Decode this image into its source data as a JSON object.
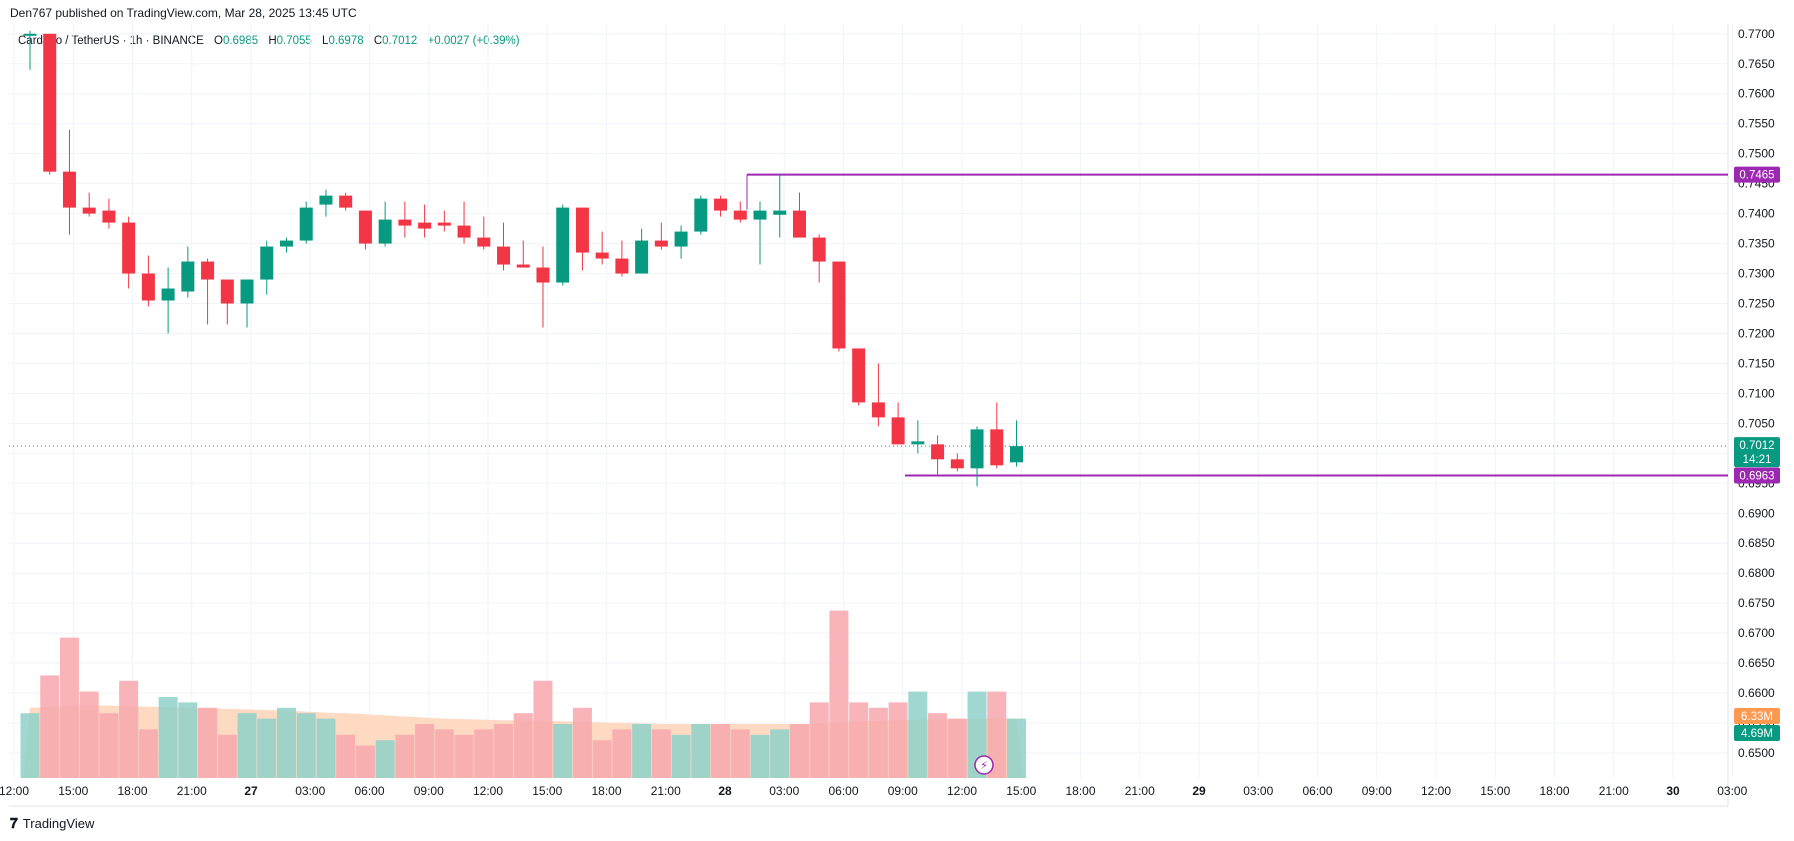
{
  "header": {
    "publisher_line": "Den767 published on TradingView.com, Mar 28, 2025 13:45 UTC"
  },
  "legend": {
    "symbol": "Cardano / TetherUS · 1h · BINANCE",
    "open_label": "O",
    "open": "0.6985",
    "high_label": "H",
    "high": "0.7055",
    "low_label": "L",
    "low": "0.6978",
    "close_label": "C",
    "close": "0.7012",
    "change": "+0.0027 (+0.39%)"
  },
  "footer": {
    "brand": "TradingView"
  },
  "colors": {
    "up": "#089981",
    "down": "#f23645",
    "vol_up": "#8fd1c9",
    "vol_down": "#f7a7ad",
    "vol_ma_fill": "#ffd3b8",
    "level_line": "#9c27b0",
    "grid": "#f0f3fa",
    "axis_text": "#131722"
  },
  "chart_data": {
    "type": "candlestick",
    "symbol": "ADAUSDT",
    "interval": "1h",
    "y_axis": {
      "range": [
        0.6485,
        0.7708
      ],
      "tick_labels": [
        "0.7700",
        "0.7650",
        "0.7600",
        "0.7550",
        "0.7500",
        "0.7450",
        "0.7400",
        "0.7350",
        "0.7300",
        "0.7250",
        "0.7200",
        "0.7150",
        "0.7100",
        "0.7050",
        "0.7000",
        "0.6950",
        "0.6900",
        "0.6850",
        "0.6800",
        "0.6750",
        "0.6700",
        "0.6650",
        "0.6600",
        "0.6550",
        "0.6500"
      ]
    },
    "x_axis": {
      "tick_labels": [
        "12:00",
        "15:00",
        "18:00",
        "21:00",
        "27",
        "03:00",
        "06:00",
        "09:00",
        "12:00",
        "15:00",
        "18:00",
        "21:00",
        "28",
        "03:00",
        "06:00",
        "09:00",
        "12:00",
        "15:00",
        "18:00",
        "21:00",
        "29",
        "03:00",
        "06:00",
        "09:00",
        "12:00",
        "15:00",
        "18:00",
        "21:00",
        "30",
        "03:00"
      ],
      "bold_labels": [
        "27",
        "28",
        "29",
        "30"
      ]
    },
    "candles": [
      {
        "o": 0.77,
        "h": 0.7705,
        "l": 0.764,
        "c": 0.77
      },
      {
        "o": 0.77,
        "h": 0.77,
        "l": 0.7465,
        "c": 0.747
      },
      {
        "o": 0.747,
        "h": 0.754,
        "l": 0.7365,
        "c": 0.741
      },
      {
        "o": 0.741,
        "h": 0.7435,
        "l": 0.7395,
        "c": 0.74
      },
      {
        "o": 0.7405,
        "h": 0.7425,
        "l": 0.7375,
        "c": 0.7385
      },
      {
        "o": 0.7385,
        "h": 0.7395,
        "l": 0.7275,
        "c": 0.73
      },
      {
        "o": 0.73,
        "h": 0.733,
        "l": 0.7245,
        "c": 0.7255
      },
      {
        "o": 0.7255,
        "h": 0.731,
        "l": 0.72,
        "c": 0.7275
      },
      {
        "o": 0.727,
        "h": 0.7345,
        "l": 0.726,
        "c": 0.732
      },
      {
        "o": 0.732,
        "h": 0.7325,
        "l": 0.7215,
        "c": 0.729
      },
      {
        "o": 0.729,
        "h": 0.729,
        "l": 0.7215,
        "c": 0.725
      },
      {
        "o": 0.725,
        "h": 0.729,
        "l": 0.721,
        "c": 0.729
      },
      {
        "o": 0.729,
        "h": 0.7355,
        "l": 0.7265,
        "c": 0.7345
      },
      {
        "o": 0.7345,
        "h": 0.736,
        "l": 0.7335,
        "c": 0.7355
      },
      {
        "o": 0.7355,
        "h": 0.742,
        "l": 0.735,
        "c": 0.741
      },
      {
        "o": 0.7415,
        "h": 0.744,
        "l": 0.7395,
        "c": 0.743
      },
      {
        "o": 0.743,
        "h": 0.7435,
        "l": 0.7405,
        "c": 0.741
      },
      {
        "o": 0.7405,
        "h": 0.7405,
        "l": 0.734,
        "c": 0.735
      },
      {
        "o": 0.735,
        "h": 0.742,
        "l": 0.7345,
        "c": 0.739
      },
      {
        "o": 0.739,
        "h": 0.742,
        "l": 0.736,
        "c": 0.738
      },
      {
        "o": 0.7385,
        "h": 0.7415,
        "l": 0.736,
        "c": 0.7375
      },
      {
        "o": 0.7385,
        "h": 0.7405,
        "l": 0.737,
        "c": 0.738
      },
      {
        "o": 0.738,
        "h": 0.742,
        "l": 0.735,
        "c": 0.736
      },
      {
        "o": 0.736,
        "h": 0.7395,
        "l": 0.734,
        "c": 0.7345
      },
      {
        "o": 0.7345,
        "h": 0.7385,
        "l": 0.7305,
        "c": 0.7315
      },
      {
        "o": 0.7315,
        "h": 0.7355,
        "l": 0.731,
        "c": 0.731
      },
      {
        "o": 0.731,
        "h": 0.7345,
        "l": 0.721,
        "c": 0.7285
      },
      {
        "o": 0.7285,
        "h": 0.7415,
        "l": 0.728,
        "c": 0.741
      },
      {
        "o": 0.741,
        "h": 0.741,
        "l": 0.7305,
        "c": 0.7335
      },
      {
        "o": 0.7335,
        "h": 0.737,
        "l": 0.7315,
        "c": 0.7325
      },
      {
        "o": 0.7325,
        "h": 0.7355,
        "l": 0.7295,
        "c": 0.73
      },
      {
        "o": 0.73,
        "h": 0.7375,
        "l": 0.73,
        "c": 0.7355
      },
      {
        "o": 0.7355,
        "h": 0.7385,
        "l": 0.734,
        "c": 0.7345
      },
      {
        "o": 0.7345,
        "h": 0.738,
        "l": 0.7325,
        "c": 0.737
      },
      {
        "o": 0.737,
        "h": 0.743,
        "l": 0.7365,
        "c": 0.7425
      },
      {
        "o": 0.7425,
        "h": 0.743,
        "l": 0.7395,
        "c": 0.7405
      },
      {
        "o": 0.7405,
        "h": 0.742,
        "l": 0.7385,
        "c": 0.739
      },
      {
        "o": 0.739,
        "h": 0.742,
        "l": 0.7315,
        "c": 0.7405
      },
      {
        "o": 0.7398,
        "h": 0.7465,
        "l": 0.736,
        "c": 0.7405
      },
      {
        "o": 0.7405,
        "h": 0.7435,
        "l": 0.7365,
        "c": 0.736
      },
      {
        "o": 0.736,
        "h": 0.7365,
        "l": 0.7285,
        "c": 0.732
      },
      {
        "o": 0.732,
        "h": 0.732,
        "l": 0.717,
        "c": 0.7175
      },
      {
        "o": 0.7175,
        "h": 0.7175,
        "l": 0.708,
        "c": 0.7085
      },
      {
        "o": 0.7085,
        "h": 0.715,
        "l": 0.7045,
        "c": 0.706
      },
      {
        "o": 0.706,
        "h": 0.7085,
        "l": 0.7015,
        "c": 0.7015
      },
      {
        "o": 0.7015,
        "h": 0.7055,
        "l": 0.7,
        "c": 0.702
      },
      {
        "o": 0.7015,
        "h": 0.703,
        "l": 0.6965,
        "c": 0.699
      },
      {
        "o": 0.699,
        "h": 0.7,
        "l": 0.697,
        "c": 0.6975
      },
      {
        "o": 0.6975,
        "h": 0.7045,
        "l": 0.6945,
        "c": 0.704
      },
      {
        "o": 0.704,
        "h": 0.7085,
        "l": 0.6975,
        "c": 0.698
      },
      {
        "o": 0.6985,
        "h": 0.7055,
        "l": 0.6978,
        "c": 0.7012
      }
    ],
    "volume": [
      12,
      19,
      26,
      16,
      12,
      18,
      9,
      15,
      14,
      13,
      8,
      12,
      11,
      13,
      12,
      11,
      8,
      6,
      7,
      8,
      10,
      9,
      8,
      9,
      10,
      12,
      18,
      10,
      13,
      7,
      9,
      10,
      9,
      8,
      10,
      10,
      9,
      8,
      9,
      10,
      14,
      31,
      14,
      13,
      14,
      16,
      12,
      11,
      16,
      16,
      11
    ],
    "volume_ma": [
      13,
      13.2,
      13.4,
      13.5,
      13.4,
      13.3,
      13.2,
      13.1,
      13,
      12.9,
      12.8,
      12.7,
      12.6,
      12.5,
      12.3,
      12.1,
      12,
      11.8,
      11.6,
      11.4,
      11.2,
      11,
      10.9,
      10.8,
      10.7,
      10.6,
      10.6,
      10.5,
      10.4,
      10.3,
      10.2,
      10.1,
      10,
      10,
      10,
      10,
      10,
      10,
      10,
      10,
      10.1,
      10.3,
      10.5,
      10.6,
      10.7,
      10.8,
      10.8,
      10.9,
      11,
      11,
      11
    ],
    "horizontal_levels": [
      {
        "label": "0.7465",
        "price": 0.7465
      },
      {
        "label": "0.6963",
        "price": 0.6963
      }
    ],
    "last_price": {
      "label": "0.7012",
      "price": 0.7012,
      "countdown": "14:21"
    },
    "volume_labels": {
      "ma": "6.33M",
      "current": "4.69M"
    }
  }
}
